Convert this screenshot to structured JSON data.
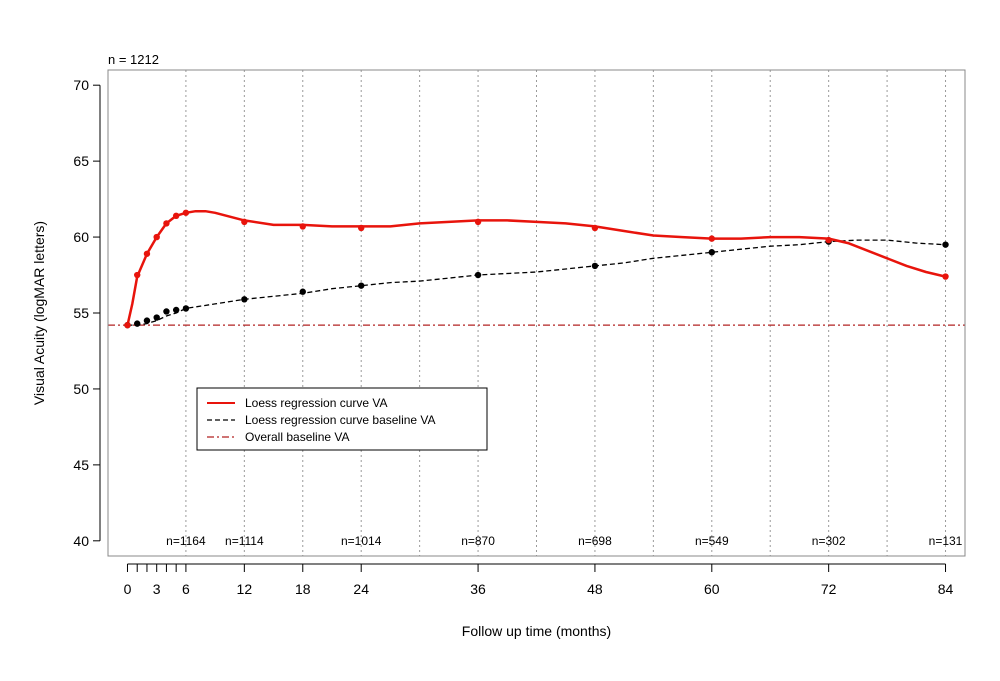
{
  "chart_data": {
    "type": "line",
    "top_left_label": "n = 1212",
    "xlabel": "Follow up time (months)",
    "ylabel": "Visual Acuity (logMAR letters)",
    "xlim": [
      -2,
      86
    ],
    "ylim": [
      39,
      71
    ],
    "x_ticks": [
      0,
      3,
      6,
      12,
      18,
      24,
      36,
      48,
      60,
      72,
      84
    ],
    "x_tick_labels": [
      "0",
      "3",
      "6",
      "12",
      "18",
      "24",
      "36",
      "48",
      "60",
      "72",
      "84"
    ],
    "x_minor_ticks": [
      1,
      2,
      4,
      5
    ],
    "y_ticks": [
      40,
      45,
      50,
      55,
      60,
      65,
      70
    ],
    "y_tick_labels": [
      "40",
      "45",
      "50",
      "55",
      "60",
      "65",
      "70"
    ],
    "vertical_gridlines": [
      6,
      12,
      18,
      24,
      30,
      36,
      42,
      48,
      54,
      60,
      66,
      72,
      78,
      84
    ],
    "n_annotations": [
      {
        "x": 6,
        "text": "n=1164"
      },
      {
        "x": 12,
        "text": "n=1114"
      },
      {
        "x": 24,
        "text": "n=1014"
      },
      {
        "x": 36,
        "text": "n=870"
      },
      {
        "x": 48,
        "text": "n=698"
      },
      {
        "x": 60,
        "text": "n=549"
      },
      {
        "x": 72,
        "text": "n=302"
      },
      {
        "x": 84,
        "text": "n=131"
      }
    ],
    "series": [
      {
        "name": "Loess regression curve VA",
        "color": "#e8140c",
        "style": "solid",
        "curve": [
          [
            0,
            54.2
          ],
          [
            0.5,
            55.6
          ],
          [
            1,
            57.4
          ],
          [
            2,
            58.9
          ],
          [
            3,
            60.0
          ],
          [
            4,
            60.9
          ],
          [
            5,
            61.4
          ],
          [
            6,
            61.6
          ],
          [
            7,
            61.7
          ],
          [
            8,
            61.7
          ],
          [
            9,
            61.6
          ],
          [
            12,
            61.1
          ],
          [
            15,
            60.8
          ],
          [
            18,
            60.8
          ],
          [
            21,
            60.7
          ],
          [
            24,
            60.7
          ],
          [
            27,
            60.7
          ],
          [
            30,
            60.9
          ],
          [
            33,
            61.0
          ],
          [
            36,
            61.1
          ],
          [
            39,
            61.1
          ],
          [
            42,
            61.0
          ],
          [
            45,
            60.9
          ],
          [
            48,
            60.7
          ],
          [
            51,
            60.4
          ],
          [
            54,
            60.1
          ],
          [
            57,
            60.0
          ],
          [
            60,
            59.9
          ],
          [
            63,
            59.9
          ],
          [
            66,
            60.0
          ],
          [
            69,
            60.0
          ],
          [
            72,
            59.9
          ],
          [
            74,
            59.6
          ],
          [
            76,
            59.1
          ],
          [
            78,
            58.6
          ],
          [
            80,
            58.1
          ],
          [
            82,
            57.7
          ],
          [
            84,
            57.4
          ]
        ],
        "points": [
          [
            0,
            54.2
          ],
          [
            1,
            57.5
          ],
          [
            2,
            58.9
          ],
          [
            3,
            60.0
          ],
          [
            4,
            60.9
          ],
          [
            5,
            61.4
          ],
          [
            6,
            61.6
          ],
          [
            12,
            61.0
          ],
          [
            18,
            60.7
          ],
          [
            24,
            60.6
          ],
          [
            36,
            61.0
          ],
          [
            48,
            60.6
          ],
          [
            60,
            59.9
          ],
          [
            72,
            59.8
          ],
          [
            84,
            57.4
          ]
        ]
      },
      {
        "name": "Loess regression curve baseline VA",
        "color": "#000000",
        "style": "dashed",
        "curve": [
          [
            0,
            54.2
          ],
          [
            1,
            54.2
          ],
          [
            2,
            54.3
          ],
          [
            3,
            54.5
          ],
          [
            4,
            54.8
          ],
          [
            5,
            55.0
          ],
          [
            6,
            55.3
          ],
          [
            9,
            55.6
          ],
          [
            12,
            55.9
          ],
          [
            15,
            56.1
          ],
          [
            18,
            56.3
          ],
          [
            21,
            56.6
          ],
          [
            24,
            56.8
          ],
          [
            27,
            57.0
          ],
          [
            30,
            57.1
          ],
          [
            33,
            57.3
          ],
          [
            36,
            57.5
          ],
          [
            39,
            57.6
          ],
          [
            42,
            57.7
          ],
          [
            45,
            57.9
          ],
          [
            48,
            58.1
          ],
          [
            51,
            58.3
          ],
          [
            54,
            58.6
          ],
          [
            57,
            58.8
          ],
          [
            60,
            59.0
          ],
          [
            63,
            59.2
          ],
          [
            66,
            59.4
          ],
          [
            69,
            59.5
          ],
          [
            72,
            59.7
          ],
          [
            75,
            59.8
          ],
          [
            78,
            59.8
          ],
          [
            81,
            59.6
          ],
          [
            84,
            59.5
          ]
        ],
        "points": [
          [
            0,
            54.2
          ],
          [
            1,
            54.3
          ],
          [
            2,
            54.5
          ],
          [
            3,
            54.7
          ],
          [
            4,
            55.1
          ],
          [
            5,
            55.2
          ],
          [
            6,
            55.3
          ],
          [
            12,
            55.9
          ],
          [
            18,
            56.4
          ],
          [
            24,
            56.8
          ],
          [
            36,
            57.5
          ],
          [
            48,
            58.1
          ],
          [
            60,
            59.0
          ],
          [
            72,
            59.7
          ],
          [
            84,
            59.5
          ]
        ]
      },
      {
        "name": "Overall baseline VA",
        "color": "#b22222",
        "style": "dashdot",
        "value": 54.2
      }
    ],
    "legend_position": "lower-left"
  }
}
